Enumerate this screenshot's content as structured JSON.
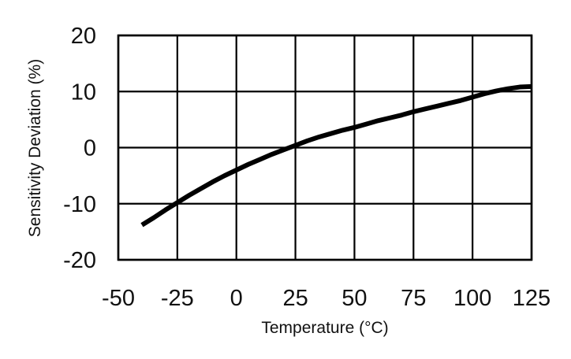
{
  "chart_data": {
    "type": "line",
    "title": "",
    "xlabel": "Temperature (°C)",
    "ylabel": "Sensitivity Deviation (%)",
    "xlim": [
      -50,
      125
    ],
    "ylim": [
      -20,
      20
    ],
    "x_ticks": [
      -50,
      -25,
      0,
      25,
      50,
      75,
      100,
      125
    ],
    "y_ticks": [
      20,
      10,
      0,
      -10,
      -20
    ],
    "x_tick_labels": [
      "-50",
      "-25",
      "0",
      "25",
      "50",
      "75",
      "100",
      "125"
    ],
    "y_tick_labels": [
      "20",
      "10",
      "0",
      "-10",
      "-20"
    ],
    "grid": true,
    "legend": null,
    "series": [
      {
        "x": [
          -40,
          -35,
          -30,
          -25,
          -20,
          -15,
          -10,
          -5,
          0,
          5,
          10,
          15,
          20,
          25,
          30,
          35,
          40,
          45,
          50,
          55,
          60,
          65,
          70,
          75,
          80,
          85,
          90,
          95,
          100,
          105,
          110,
          115,
          120,
          125
        ],
        "y": [
          -13.8,
          -12.5,
          -11.1,
          -9.8,
          -8.5,
          -7.3,
          -6.1,
          -5.0,
          -4.0,
          -3.0,
          -2.1,
          -1.2,
          -0.4,
          0.4,
          1.2,
          1.9,
          2.5,
          3.1,
          3.6,
          4.2,
          4.8,
          5.3,
          5.8,
          6.4,
          6.9,
          7.4,
          7.9,
          8.4,
          9.0,
          9.6,
          10.1,
          10.5,
          10.8,
          10.9
        ]
      }
    ],
    "colors": {
      "line": "#000000",
      "grid": "#000000",
      "text": "#111111",
      "background": "#ffffff"
    }
  }
}
